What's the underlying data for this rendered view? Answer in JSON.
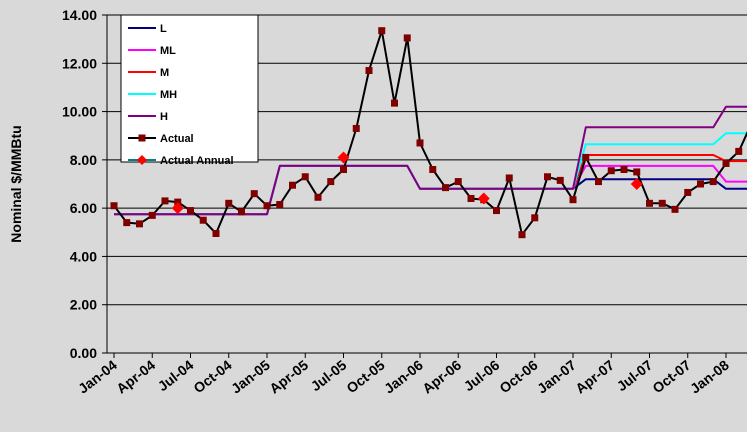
{
  "chart_data": {
    "type": "line",
    "ylabel": "Nominal $/MMBtu",
    "ylim": [
      0,
      14
    ],
    "yticks": [
      "0.00",
      "2.00",
      "4.00",
      "6.00",
      "8.00",
      "10.00",
      "12.00",
      "14.00"
    ],
    "xtick_labels": [
      "Jan-04",
      "Apr-04",
      "Jul-04",
      "Oct-04",
      "Jan-05",
      "Apr-05",
      "Jul-05",
      "Oct-05",
      "Jan-06",
      "Apr-06",
      "Jul-06",
      "Oct-06",
      "Jan-07",
      "Apr-07",
      "Jul-07",
      "Oct-07",
      "Jan-08"
    ],
    "x_start": "Jan-04",
    "x_end": "Apr-08",
    "legend_position": "top-left",
    "grid": "horizontal",
    "series": [
      {
        "name": "L",
        "color": "#000080",
        "style": "step",
        "points": [
          [
            "Jan-04",
            5.75
          ],
          [
            "Jan-05",
            5.75
          ],
          [
            "Feb-05",
            7.75
          ],
          [
            "Dec-05",
            7.75
          ],
          [
            "Jan-06",
            6.8
          ],
          [
            "Dec-06",
            6.8
          ],
          [
            "Jan-07",
            6.8
          ],
          [
            "Feb-07",
            7.2
          ],
          [
            "Dec-07",
            7.2
          ],
          [
            "Jan-08",
            6.8
          ],
          [
            "Apr-08",
            6.8
          ]
        ]
      },
      {
        "name": "ML",
        "color": "#ff00ff",
        "style": "step",
        "points": [
          [
            "Jan-04",
            5.75
          ],
          [
            "Jan-05",
            5.75
          ],
          [
            "Feb-05",
            7.75
          ],
          [
            "Dec-05",
            7.75
          ],
          [
            "Jan-06",
            6.8
          ],
          [
            "Dec-06",
            6.8
          ],
          [
            "Jan-07",
            6.8
          ],
          [
            "Feb-07",
            7.75
          ],
          [
            "Dec-07",
            7.75
          ],
          [
            "Jan-08",
            7.1
          ],
          [
            "Apr-08",
            7.1
          ]
        ]
      },
      {
        "name": "M",
        "color": "#ff0000",
        "style": "step",
        "points": [
          [
            "Jan-04",
            5.75
          ],
          [
            "Jan-05",
            5.75
          ],
          [
            "Feb-05",
            7.75
          ],
          [
            "Dec-05",
            7.75
          ],
          [
            "Jan-06",
            6.8
          ],
          [
            "Dec-06",
            6.8
          ],
          [
            "Jan-07",
            6.8
          ],
          [
            "Feb-07",
            8.2
          ],
          [
            "Dec-07",
            8.2
          ],
          [
            "Jan-08",
            7.95
          ],
          [
            "Apr-08",
            7.95
          ]
        ]
      },
      {
        "name": "MH",
        "color": "#00ffff",
        "style": "step",
        "points": [
          [
            "Jan-04",
            5.75
          ],
          [
            "Jan-05",
            5.75
          ],
          [
            "Feb-05",
            7.75
          ],
          [
            "Dec-05",
            7.75
          ],
          [
            "Jan-06",
            6.8
          ],
          [
            "Dec-06",
            6.8
          ],
          [
            "Jan-07",
            6.8
          ],
          [
            "Feb-07",
            8.65
          ],
          [
            "Dec-07",
            8.65
          ],
          [
            "Jan-08",
            9.1
          ],
          [
            "Apr-08",
            9.1
          ]
        ]
      },
      {
        "name": "H",
        "color": "#800080",
        "style": "step",
        "points": [
          [
            "Jan-04",
            5.75
          ],
          [
            "Jan-05",
            5.75
          ],
          [
            "Feb-05",
            7.75
          ],
          [
            "Dec-05",
            7.75
          ],
          [
            "Jan-06",
            6.8
          ],
          [
            "Dec-06",
            6.8
          ],
          [
            "Jan-07",
            6.8
          ],
          [
            "Feb-07",
            9.35
          ],
          [
            "Dec-07",
            9.35
          ],
          [
            "Jan-08",
            10.2
          ],
          [
            "Apr-08",
            10.2
          ]
        ]
      },
      {
        "name": "Actual",
        "color": "#000000",
        "marker_color": "#800000",
        "marker": "square",
        "points": [
          [
            "Jan-04",
            6.1
          ],
          [
            "Feb-04",
            5.4
          ],
          [
            "Mar-04",
            5.35
          ],
          [
            "Apr-04",
            5.7
          ],
          [
            "May-04",
            6.3
          ],
          [
            "Jun-04",
            6.25
          ],
          [
            "Jul-04",
            5.9
          ],
          [
            "Aug-04",
            5.5
          ],
          [
            "Sep-04",
            4.95
          ],
          [
            "Oct-04",
            6.2
          ],
          [
            "Nov-04",
            5.85
          ],
          [
            "Dec-04",
            6.6
          ],
          [
            "Jan-05",
            6.1
          ],
          [
            "Feb-05",
            6.15
          ],
          [
            "Mar-05",
            6.95
          ],
          [
            "Apr-05",
            7.3
          ],
          [
            "May-05",
            6.45
          ],
          [
            "Jun-05",
            7.1
          ],
          [
            "Jul-05",
            7.6
          ],
          [
            "Aug-05",
            9.3
          ],
          [
            "Sep-05",
            11.7
          ],
          [
            "Oct-05",
            13.35
          ],
          [
            "Nov-05",
            10.35
          ],
          [
            "Dec-05",
            13.05
          ],
          [
            "Jan-06",
            8.7
          ],
          [
            "Feb-06",
            7.6
          ],
          [
            "Mar-06",
            6.85
          ],
          [
            "Apr-06",
            7.1
          ],
          [
            "May-06",
            6.4
          ],
          [
            "Jun-06",
            6.35
          ],
          [
            "Jul-06",
            5.9
          ],
          [
            "Aug-06",
            7.25
          ],
          [
            "Sep-06",
            4.9
          ],
          [
            "Oct-06",
            5.6
          ],
          [
            "Nov-06",
            7.3
          ],
          [
            "Dec-06",
            7.15
          ],
          [
            "Jan-07",
            6.35
          ],
          [
            "Feb-07",
            8.1
          ],
          [
            "Mar-07",
            7.1
          ],
          [
            "Apr-07",
            7.55
          ],
          [
            "May-07",
            7.6
          ],
          [
            "Jun-07",
            7.5
          ],
          [
            "Jul-07",
            6.2
          ],
          [
            "Aug-07",
            6.2
          ],
          [
            "Sep-07",
            5.95
          ],
          [
            "Oct-07",
            6.65
          ],
          [
            "Nov-07",
            7.0
          ],
          [
            "Dec-07",
            7.1
          ],
          [
            "Jan-08",
            7.85
          ],
          [
            "Feb-08",
            8.35
          ],
          [
            "Mar-08",
            9.5
          ]
        ]
      },
      {
        "name": "Actual Annual",
        "color": "#008080",
        "marker_color": "#ff0000",
        "marker": "diamond",
        "line_drawn": false,
        "points": [
          [
            "Jun-04",
            6.0
          ],
          [
            "Jul-05",
            8.1
          ],
          [
            "Jun-06",
            6.4
          ],
          [
            "Jun-07",
            7.0
          ]
        ]
      }
    ]
  }
}
